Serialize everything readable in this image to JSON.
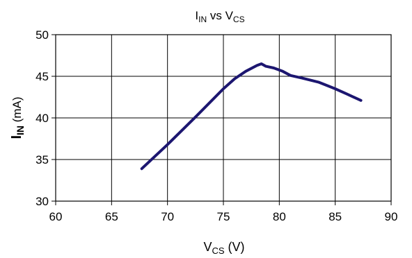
{
  "chart_data": {
    "type": "line",
    "title": {
      "main": "I",
      "sub": "IN",
      "mid": " vs V",
      "sub2": "CS"
    },
    "xlabel": {
      "main": "V",
      "sub": "CS",
      "tail": " (V)"
    },
    "ylabel": {
      "main": "I",
      "sub": "IN",
      "tail": " (mA)"
    },
    "xlim": [
      60,
      90
    ],
    "ylim": [
      30,
      50
    ],
    "xticks": [
      60,
      65,
      70,
      75,
      80,
      85,
      90
    ],
    "yticks": [
      30,
      35,
      40,
      45,
      50
    ],
    "grid": true,
    "series": [
      {
        "color": "#1c1670",
        "points": [
          [
            67.7,
            33.9
          ],
          [
            70.0,
            36.8
          ],
          [
            72.5,
            40.1
          ],
          [
            75.0,
            43.5
          ],
          [
            76.0,
            44.7
          ],
          [
            77.0,
            45.6
          ],
          [
            78.0,
            46.3
          ],
          [
            78.4,
            46.5
          ],
          [
            78.8,
            46.2
          ],
          [
            79.5,
            46.0
          ],
          [
            80.3,
            45.6
          ],
          [
            81.0,
            45.1
          ],
          [
            82.0,
            44.8
          ],
          [
            83.5,
            44.3
          ],
          [
            85.0,
            43.5
          ],
          [
            86.0,
            42.9
          ],
          [
            87.3,
            42.1
          ]
        ]
      }
    ]
  }
}
